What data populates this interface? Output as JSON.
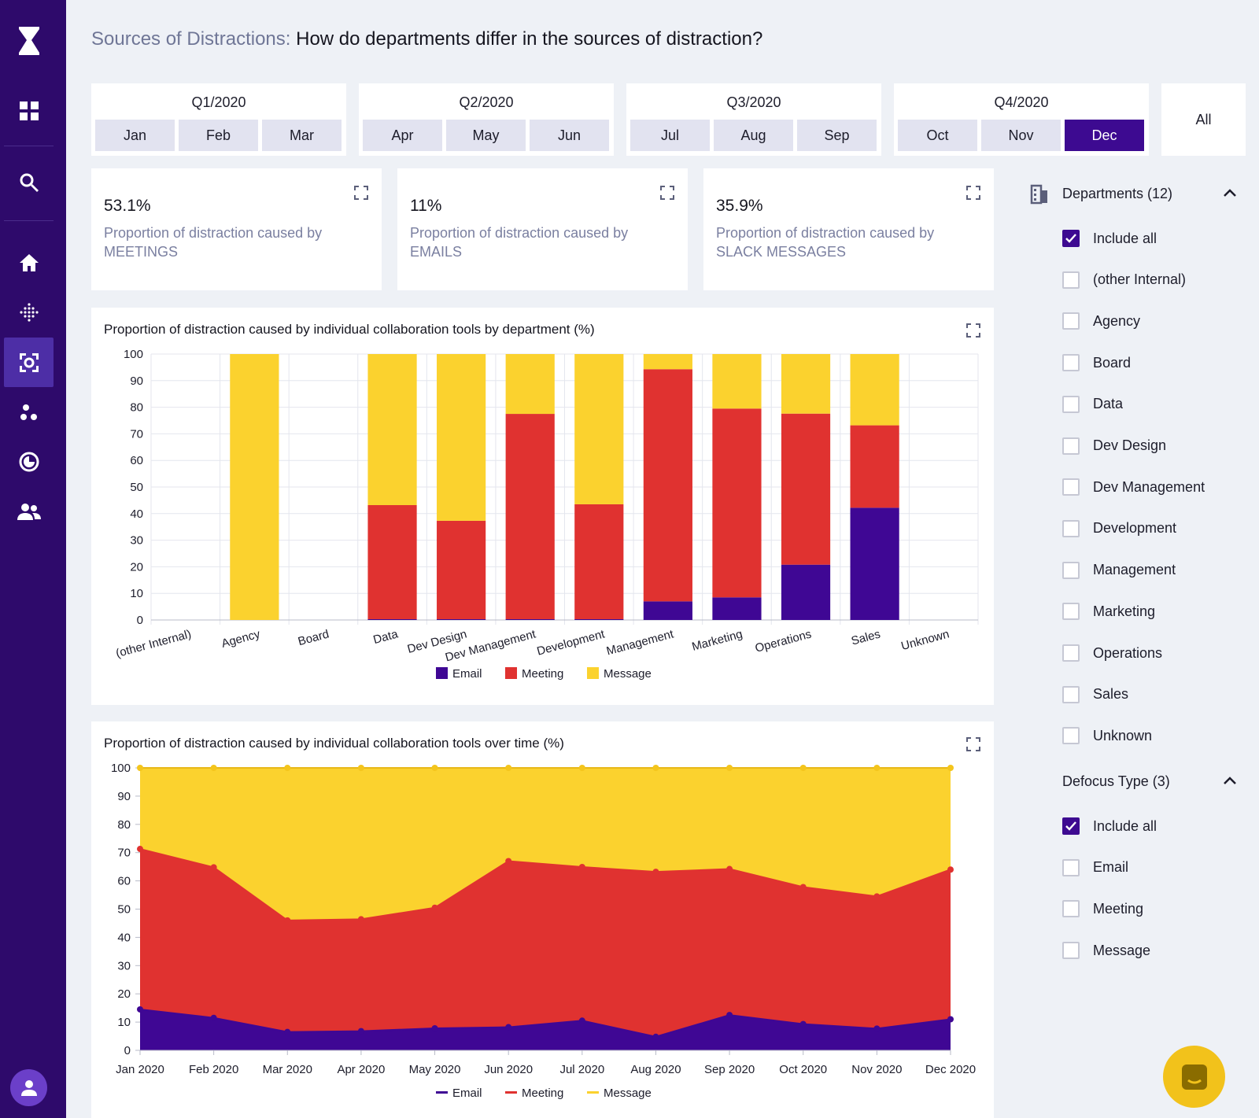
{
  "header": {
    "prefix": "Sources of Distractions:",
    "title": "How do departments differ in the sources of distraction?"
  },
  "quarters": [
    {
      "label": "Q1/2020",
      "months": [
        "Jan",
        "Feb",
        "Mar"
      ]
    },
    {
      "label": "Q2/2020",
      "months": [
        "Apr",
        "May",
        "Jun"
      ]
    },
    {
      "label": "Q3/2020",
      "months": [
        "Jul",
        "Aug",
        "Sep"
      ]
    },
    {
      "label": "Q4/2020",
      "months": [
        "Oct",
        "Nov",
        "Dec"
      ]
    }
  ],
  "selected_month": "Dec",
  "all_label": "All",
  "kpis": [
    {
      "value": "53.1%",
      "description": "Proportion of distraction caused by MEETINGS"
    },
    {
      "value": "11%",
      "description": "Proportion of distraction caused by EMAILS"
    },
    {
      "value": "35.9%",
      "description": "Proportion of distraction caused by SLACK MESSAGES"
    }
  ],
  "filters": {
    "departments": {
      "title": "Departments (12)",
      "options": [
        {
          "label": "Include all",
          "checked": true
        },
        {
          "label": "(other Internal)",
          "checked": false
        },
        {
          "label": "Agency",
          "checked": false
        },
        {
          "label": "Board",
          "checked": false
        },
        {
          "label": "Data",
          "checked": false
        },
        {
          "label": "Dev Design",
          "checked": false
        },
        {
          "label": "Dev Management",
          "checked": false
        },
        {
          "label": "Development",
          "checked": false
        },
        {
          "label": "Management",
          "checked": false
        },
        {
          "label": "Marketing",
          "checked": false
        },
        {
          "label": "Operations",
          "checked": false
        },
        {
          "label": "Sales",
          "checked": false
        },
        {
          "label": "Unknown",
          "checked": false
        }
      ]
    },
    "defocus": {
      "title": "Defocus Type (3)",
      "options": [
        {
          "label": "Include all",
          "checked": true
        },
        {
          "label": "Email",
          "checked": false
        },
        {
          "label": "Meeting",
          "checked": false
        },
        {
          "label": "Message",
          "checked": false
        }
      ]
    }
  },
  "colors": {
    "email": "#3f0794",
    "meeting": "#e03230",
    "message": "#fbd22e",
    "accent": "#3d0a91"
  },
  "chart_data": [
    {
      "type": "bar",
      "stacked": true,
      "title": "Proportion of distraction caused by individual collaboration tools by department (%)",
      "categories": [
        "(other Internal)",
        "Agency",
        "Board",
        "Data",
        "Dev Design",
        "Dev Management",
        "Development",
        "Management",
        "Marketing",
        "Operations",
        "Sales",
        "Unknown"
      ],
      "series": [
        {
          "name": "Email",
          "values": [
            0,
            0,
            0,
            0.3,
            0.3,
            0.3,
            0.3,
            7,
            8.5,
            20.8,
            42.2,
            0
          ]
        },
        {
          "name": "Meeting",
          "values": [
            0,
            0,
            0,
            42.9,
            37,
            77.2,
            43.2,
            87.3,
            71,
            56.8,
            31,
            0
          ]
        },
        {
          "name": "Message",
          "values": [
            0,
            100,
            0,
            56.8,
            62.7,
            22.5,
            56.5,
            5.7,
            20.5,
            22.4,
            26.8,
            0
          ]
        }
      ],
      "ylim": [
        0,
        100
      ],
      "yticks": [
        0,
        10,
        20,
        30,
        40,
        50,
        60,
        70,
        80,
        90,
        100
      ],
      "legend": "bottom"
    },
    {
      "type": "area",
      "stacked": true,
      "title": "Proportion of distraction caused by individual collaboration tools over time (%)",
      "x": [
        "Jan 2020",
        "Feb 2020",
        "Mar 2020",
        "Apr 2020",
        "May 2020",
        "Jun 2020",
        "Jul 2020",
        "Aug 2020",
        "Sep 2020",
        "Oct 2020",
        "Nov 2020",
        "Dec 2020"
      ],
      "series": [
        {
          "name": "Email",
          "values": [
            14.5,
            11.5,
            6.5,
            6.8,
            7.8,
            8.2,
            10.5,
            4.8,
            12.5,
            9.3,
            7.7,
            11
          ]
        },
        {
          "name": "Meeting",
          "values": [
            56.8,
            53.3,
            39.5,
            39.6,
            42.7,
            58.8,
            54.4,
            58.4,
            51.7,
            48.5,
            46.8,
            53
          ]
        },
        {
          "name": "Message",
          "values": [
            28.7,
            35.2,
            54,
            53.6,
            49.5,
            33,
            35.1,
            36.8,
            35.8,
            42.2,
            45.5,
            36
          ]
        }
      ],
      "ylim": [
        0,
        100
      ],
      "yticks": [
        0,
        10,
        20,
        30,
        40,
        50,
        60,
        70,
        80,
        90,
        100
      ],
      "legend": "bottom"
    }
  ]
}
